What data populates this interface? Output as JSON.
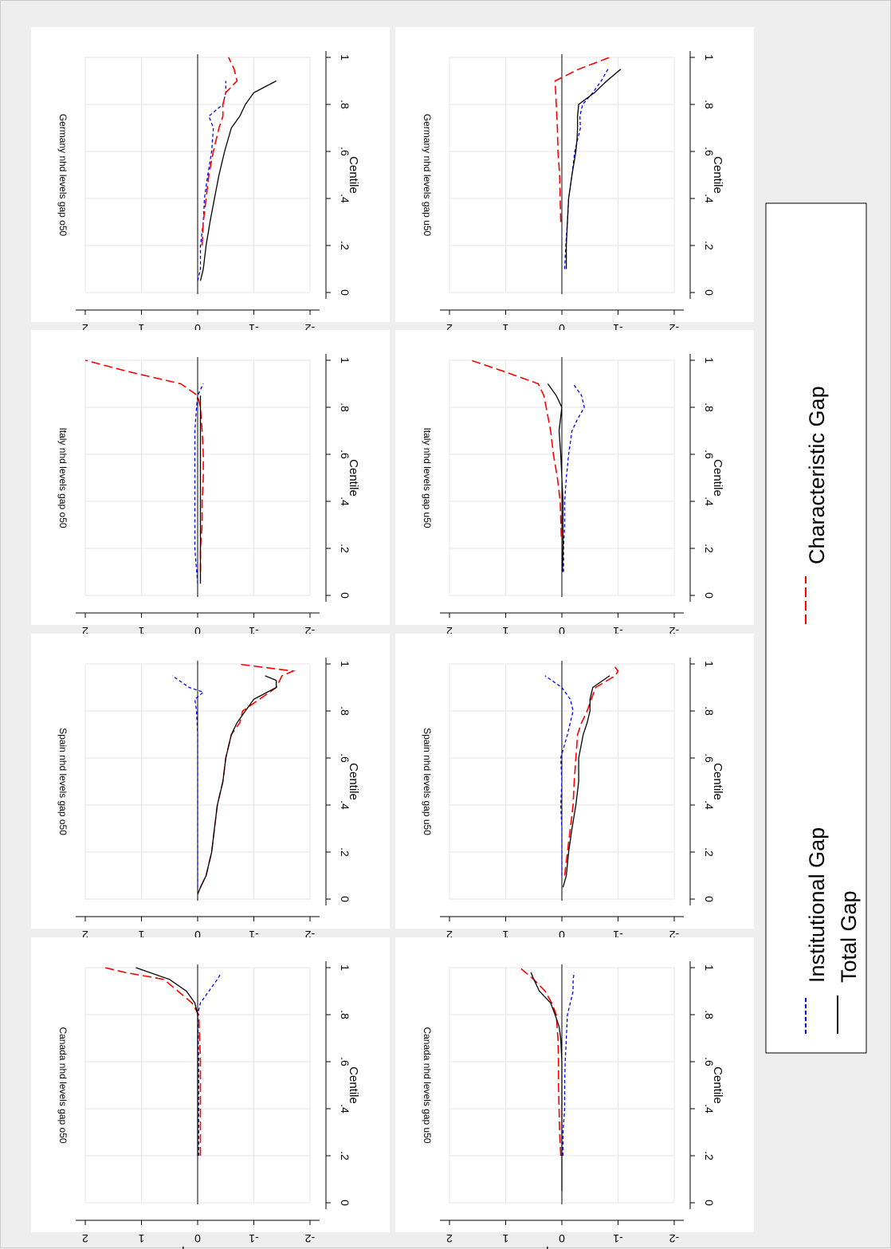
{
  "figure": {
    "xlabel": "Centile",
    "ylabel": "Wealth Gap nhd",
    "xticks": [
      "0",
      ".2",
      ".4",
      ".6",
      ".8",
      "1"
    ],
    "yticks": [
      "-2",
      "-1",
      "0",
      "1",
      "2"
    ],
    "colors": {
      "institutional": "#0000ff",
      "characteristic": "#ff0000",
      "total": "#000000",
      "grid": "#e6e6e6",
      "panel_bg": "#ffffff",
      "page_bg": "#eeeeee"
    },
    "legend": {
      "placement": "right",
      "items": [
        {
          "key": "institutional",
          "label": "Institutional Gap",
          "style": "short-dash"
        },
        {
          "key": "characteristic",
          "label": "Characteristic Gap",
          "style": "long-dash"
        },
        {
          "key": "total",
          "label": "Total Gap",
          "style": "solid"
        }
      ]
    }
  },
  "chart_data": [
    {
      "type": "line",
      "title": "Germany nhd levels gap u50",
      "xlabel": "Centile",
      "ylabel": "Wealth Gap nhd",
      "xlim": [
        0,
        1
      ],
      "ylim": [
        -2,
        2
      ],
      "series": [
        {
          "name": "Institutional Gap",
          "x": [
            0.1,
            0.2,
            0.3,
            0.4,
            0.5,
            0.6,
            0.65,
            0.7,
            0.75,
            0.8,
            0.85,
            0.9,
            0.95
          ],
          "y": [
            -0.05,
            -0.07,
            -0.1,
            -0.12,
            -0.18,
            -0.23,
            -0.28,
            -0.33,
            -0.32,
            -0.37,
            -0.55,
            -0.7,
            -0.82
          ]
        },
        {
          "name": "Characteristic Gap",
          "x": [
            0.3,
            0.5,
            0.6,
            0.7,
            0.8,
            0.9,
            0.95,
            1.0
          ],
          "y": [
            0.02,
            0.04,
            0.07,
            0.08,
            0.1,
            0.12,
            -0.3,
            -0.85
          ]
        },
        {
          "name": "Total Gap",
          "x": [
            0.1,
            0.2,
            0.3,
            0.4,
            0.5,
            0.6,
            0.65,
            0.7,
            0.75,
            0.8,
            0.85,
            0.9,
            0.95
          ],
          "y": [
            -0.08,
            -0.08,
            -0.1,
            -0.12,
            -0.18,
            -0.25,
            -0.27,
            -0.28,
            -0.28,
            -0.3,
            -0.58,
            -0.8,
            -1.05
          ]
        }
      ]
    },
    {
      "type": "line",
      "title": "Italy nhd levels gap u50",
      "xlabel": "Centile",
      "ylabel": "Wealth Gap nhd",
      "xlim": [
        0,
        1
      ],
      "ylim": [
        -2,
        2
      ],
      "series": [
        {
          "name": "Institutional Gap",
          "x": [
            0.1,
            0.2,
            0.3,
            0.4,
            0.5,
            0.6,
            0.7,
            0.75,
            0.8,
            0.85,
            0.9
          ],
          "y": [
            -0.03,
            -0.03,
            -0.05,
            -0.05,
            -0.08,
            -0.12,
            -0.18,
            -0.28,
            -0.4,
            -0.35,
            -0.2
          ]
        },
        {
          "name": "Characteristic Gap",
          "x": [
            0.25,
            0.4,
            0.5,
            0.6,
            0.7,
            0.8,
            0.85,
            0.9,
            0.95,
            1.0
          ],
          "y": [
            0.01,
            0.03,
            0.08,
            0.15,
            0.2,
            0.28,
            0.32,
            0.42,
            1.0,
            1.62
          ]
        },
        {
          "name": "Total Gap",
          "x": [
            0.1,
            0.2,
            0.3,
            0.4,
            0.5,
            0.6,
            0.7,
            0.8,
            0.85,
            0.9
          ],
          "y": [
            -0.01,
            -0.02,
            -0.02,
            -0.02,
            0.0,
            0.02,
            0.05,
            0.0,
            0.1,
            0.25
          ]
        }
      ]
    },
    {
      "type": "line",
      "title": "Spain nhd levels gap u50",
      "xlabel": "Centile",
      "ylabel": "Wealth Gap nhd",
      "xlim": [
        0,
        1
      ],
      "ylim": [
        -2,
        2
      ],
      "series": [
        {
          "name": "Institutional Gap",
          "x": [
            0.1,
            0.2,
            0.3,
            0.4,
            0.5,
            0.6,
            0.7,
            0.8,
            0.85,
            0.9,
            0.95
          ],
          "y": [
            0.0,
            0.0,
            0.0,
            0.02,
            0.0,
            0.02,
            -0.1,
            -0.2,
            -0.15,
            0.0,
            0.3
          ]
        },
        {
          "name": "Characteristic Gap",
          "x": [
            0.1,
            0.2,
            0.3,
            0.4,
            0.5,
            0.6,
            0.7,
            0.75,
            0.8,
            0.9,
            0.95,
            0.97,
            1.0
          ],
          "y": [
            -0.05,
            -0.1,
            -0.15,
            -0.2,
            -0.22,
            -0.25,
            -0.28,
            -0.35,
            -0.45,
            -0.6,
            -0.95,
            -1.0,
            -0.9
          ]
        },
        {
          "name": "Total Gap",
          "x": [
            0.05,
            0.1,
            0.2,
            0.3,
            0.4,
            0.5,
            0.6,
            0.7,
            0.75,
            0.8,
            0.85,
            0.9,
            0.95
          ],
          "y": [
            -0.02,
            -0.08,
            -0.12,
            -0.18,
            -0.25,
            -0.3,
            -0.3,
            -0.38,
            -0.45,
            -0.5,
            -0.5,
            -0.55,
            -0.85
          ]
        }
      ]
    },
    {
      "type": "line",
      "title": "Canada nhd levels gap u50",
      "xlabel": "Centile",
      "ylabel": "Wealth Gap nhd",
      "xlim": [
        0,
        1
      ],
      "ylim": [
        -2,
        2
      ],
      "series": [
        {
          "name": "Institutional Gap",
          "x": [
            0.2,
            0.3,
            0.4,
            0.5,
            0.6,
            0.7,
            0.8,
            0.85,
            0.9,
            0.95,
            0.98
          ],
          "y": [
            -0.02,
            -0.02,
            -0.05,
            -0.05,
            -0.06,
            -0.08,
            -0.1,
            -0.15,
            -0.2,
            -0.2,
            -0.22
          ]
        },
        {
          "name": "Characteristic Gap",
          "x": [
            0.2,
            0.3,
            0.4,
            0.5,
            0.6,
            0.7,
            0.8,
            0.85,
            0.9,
            0.95,
            1.0
          ],
          "y": [
            0.02,
            0.04,
            0.05,
            0.06,
            0.06,
            0.07,
            0.1,
            0.18,
            0.3,
            0.5,
            0.75
          ]
        },
        {
          "name": "Total Gap",
          "x": [
            0.05,
            0.2,
            0.4,
            0.6,
            0.7,
            0.75,
            0.8,
            0.85,
            0.9,
            0.95,
            0.98
          ],
          "y": [
            0.0,
            0.0,
            0.0,
            0.0,
            0.02,
            0.05,
            0.12,
            0.2,
            0.4,
            0.5,
            0.55
          ]
        }
      ]
    },
    {
      "type": "line",
      "title": "Germany nhd levels gap o50",
      "xlabel": "Centile",
      "ylabel": "Wealth Gap nhd",
      "xlim": [
        0,
        1
      ],
      "ylim": [
        -2,
        2
      ],
      "series": [
        {
          "name": "Institutional Gap",
          "x": [
            0.05,
            0.1,
            0.2,
            0.3,
            0.4,
            0.5,
            0.6,
            0.7,
            0.75,
            0.8,
            0.85,
            0.9
          ],
          "y": [
            0.0,
            -0.05,
            -0.05,
            -0.1,
            -0.12,
            -0.18,
            -0.25,
            -0.28,
            -0.2,
            -0.45,
            -0.5,
            -0.5
          ]
        },
        {
          "name": "Characteristic Gap",
          "x": [
            0.2,
            0.3,
            0.4,
            0.5,
            0.6,
            0.7,
            0.75,
            0.8,
            0.85,
            0.9,
            0.95,
            1.0
          ],
          "y": [
            -0.08,
            -0.1,
            -0.15,
            -0.2,
            -0.28,
            -0.38,
            -0.45,
            -0.45,
            -0.5,
            -0.7,
            -0.65,
            -0.55
          ]
        },
        {
          "name": "Total Gap",
          "x": [
            0.05,
            0.1,
            0.2,
            0.3,
            0.4,
            0.5,
            0.6,
            0.7,
            0.75,
            0.8,
            0.85,
            0.9
          ],
          "y": [
            -0.05,
            -0.1,
            -0.15,
            -0.22,
            -0.3,
            -0.38,
            -0.48,
            -0.6,
            -0.75,
            -0.85,
            -1.0,
            -1.4
          ]
        }
      ]
    },
    {
      "type": "line",
      "title": "Italy nhd levels gap o50",
      "xlabel": "Centile",
      "ylabel": "Wealth Gap nhd",
      "xlim": [
        0,
        1
      ],
      "ylim": [
        -2,
        2
      ],
      "series": [
        {
          "name": "Institutional Gap",
          "x": [
            0.05,
            0.2,
            0.4,
            0.5,
            0.6,
            0.7,
            0.8,
            0.85,
            0.9
          ],
          "y": [
            0.0,
            0.05,
            0.05,
            0.05,
            0.05,
            0.05,
            0.02,
            0.0,
            -0.1
          ]
        },
        {
          "name": "Characteristic Gap",
          "x": [
            0.1,
            0.2,
            0.3,
            0.4,
            0.5,
            0.6,
            0.7,
            0.8,
            0.85,
            0.9,
            0.95,
            1.0
          ],
          "y": [
            -0.05,
            -0.05,
            -0.08,
            -0.08,
            -0.1,
            -0.1,
            -0.08,
            -0.05,
            0.0,
            0.3,
            1.2,
            2.0
          ]
        },
        {
          "name": "Total Gap",
          "x": [
            0.05,
            0.2,
            0.4,
            0.6,
            0.8,
            0.85
          ],
          "y": [
            -0.05,
            -0.05,
            -0.05,
            -0.05,
            -0.05,
            -0.05
          ]
        }
      ]
    },
    {
      "type": "line",
      "title": "Spain nhd levels gap o50",
      "xlabel": "Centile",
      "ylabel": "Wealth Gap nhd",
      "xlim": [
        0,
        1
      ],
      "ylim": [
        -2,
        2
      ],
      "series": [
        {
          "name": "Institutional Gap",
          "x": [
            0.05,
            0.2,
            0.35,
            0.5,
            0.6,
            0.7,
            0.8,
            0.85,
            0.88,
            0.9,
            0.95
          ],
          "y": [
            0.0,
            0.0,
            0.0,
            0.0,
            0.0,
            0.0,
            0.02,
            0.05,
            -0.1,
            0.15,
            0.45
          ]
        },
        {
          "name": "Characteristic Gap",
          "x": [
            0.05,
            0.1,
            0.2,
            0.3,
            0.4,
            0.5,
            0.6,
            0.7,
            0.75,
            0.8,
            0.85,
            0.9,
            0.95,
            0.97,
            1.0
          ],
          "y": [
            -0.05,
            -0.15,
            -0.25,
            -0.3,
            -0.35,
            -0.45,
            -0.5,
            -0.6,
            -0.75,
            -0.8,
            -1.1,
            -1.4,
            -1.5,
            -1.7,
            -0.7
          ]
        },
        {
          "name": "Total Gap",
          "x": [
            0.02,
            0.05,
            0.1,
            0.2,
            0.3,
            0.4,
            0.5,
            0.6,
            0.7,
            0.75,
            0.8,
            0.85,
            0.9,
            0.93,
            0.95
          ],
          "y": [
            0.0,
            -0.05,
            -0.15,
            -0.25,
            -0.3,
            -0.35,
            -0.45,
            -0.5,
            -0.6,
            -0.7,
            -0.85,
            -1.0,
            -1.4,
            -1.4,
            -1.2
          ]
        }
      ]
    },
    {
      "type": "line",
      "title": "Canada nhd levels gap o50",
      "xlabel": "Centile",
      "ylabel": "Wealth Gap nhd",
      "xlim": [
        0,
        1
      ],
      "ylim": [
        -2,
        2
      ],
      "series": [
        {
          "name": "Institutional Gap",
          "x": [
            0.2,
            0.4,
            0.6,
            0.8,
            0.85,
            0.9,
            0.95,
            0.97
          ],
          "y": [
            -0.02,
            -0.02,
            -0.02,
            0.0,
            -0.05,
            -0.2,
            -0.35,
            -0.4
          ]
        },
        {
          "name": "Characteristic Gap",
          "x": [
            0.2,
            0.4,
            0.6,
            0.8,
            0.85,
            0.9,
            0.95,
            0.98,
            1.0
          ],
          "y": [
            -0.05,
            -0.05,
            -0.05,
            -0.02,
            0.1,
            0.35,
            0.6,
            1.3,
            1.65
          ]
        },
        {
          "name": "Total Gap",
          "x": [
            0.2,
            0.4,
            0.6,
            0.8,
            0.85,
            0.9,
            0.95,
            1.0
          ],
          "y": [
            0.0,
            0.0,
            0.0,
            0.0,
            0.05,
            0.2,
            0.5,
            1.1
          ]
        }
      ]
    }
  ]
}
